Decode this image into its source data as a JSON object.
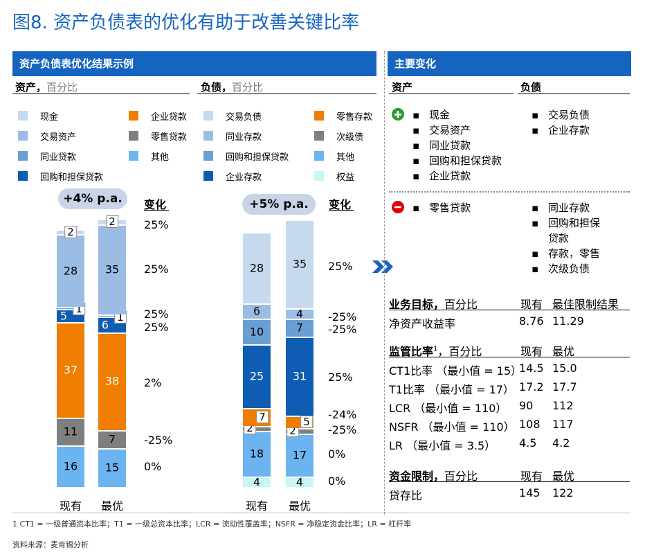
{
  "title": "图8. 资产负债表的优化有助于改善关键比率",
  "left_panel": {
    "banner": "资产负债表优化结果示例",
    "assets_head": "资产，",
    "assets_sub": "百分比",
    "liab_head": "负债，",
    "liab_sub": "百分比",
    "asset_legend": [
      {
        "label": "现金",
        "color": "#c6d9ee"
      },
      {
        "label": "企业贷款",
        "color": "#ef7d00"
      },
      {
        "label": "交易资产",
        "color": "#9bbde3"
      },
      {
        "label": "零售贷款",
        "color": "#7f7f7f"
      },
      {
        "label": "同业贷款",
        "color": "#6a9fd3"
      },
      {
        "label": "其他",
        "color": "#6bb4f0"
      },
      {
        "label": "回购和担保贷款",
        "color": "#0e5db3"
      }
    ],
    "liab_legend": [
      {
        "label": "交易负债",
        "color": "#c6d9ee"
      },
      {
        "label": "零售存款",
        "color": "#ef7d00"
      },
      {
        "label": "同业存款",
        "color": "#9bbde3"
      },
      {
        "label": "次级债",
        "color": "#7f7f7f"
      },
      {
        "label": "回购和担保贷款",
        "color": "#6a9fd3"
      },
      {
        "label": "其他",
        "color": "#6bb4f0"
      },
      {
        "label": "企业存款",
        "color": "#0e5db3"
      },
      {
        "label": "权益",
        "color": "#c8f7f5"
      }
    ],
    "assets_growth": "+4% p.a.",
    "liab_growth": "+5% p.a.",
    "change_head": "变化",
    "asset_changes": [
      "25%",
      "25%",
      "25%",
      "25%",
      "2%",
      "-25%",
      "0%"
    ],
    "liab_changes": [
      "25%",
      "-25%",
      "-25%",
      "25%",
      "-24%",
      "-25%",
      "0%",
      "0%"
    ]
  },
  "chart_data": [
    {
      "type": "bar",
      "stacked": true,
      "title": "资产，百分比",
      "categories": [
        "现有",
        "最优"
      ],
      "series": [
        {
          "name": "其他",
          "values": [
            16,
            15
          ],
          "color": "#6bb4f0"
        },
        {
          "name": "零售贷款",
          "values": [
            11,
            7
          ],
          "color": "#7f7f7f"
        },
        {
          "name": "企业贷款",
          "values": [
            37,
            38
          ],
          "color": "#ef7d00"
        },
        {
          "name": "回购和担保贷款",
          "values": [
            5,
            6
          ],
          "color": "#0e5db3"
        },
        {
          "name": "同业贷款",
          "values": [
            1,
            1
          ],
          "color": "#6a9fd3"
        },
        {
          "name": "交易资产",
          "values": [
            28,
            35
          ],
          "color": "#9bbde3"
        },
        {
          "name": "现金",
          "values": [
            2,
            2
          ],
          "color": "#c6d9ee"
        }
      ]
    },
    {
      "type": "bar",
      "stacked": true,
      "title": "负债，百分比",
      "categories": [
        "现有",
        "最优"
      ],
      "series": [
        {
          "name": "权益",
          "values": [
            4,
            4
          ],
          "color": "#c8f7f5"
        },
        {
          "name": "其他",
          "values": [
            18,
            17
          ],
          "color": "#6bb4f0"
        },
        {
          "name": "次级债",
          "values": [
            2,
            2
          ],
          "color": "#7f7f7f"
        },
        {
          "name": "零售存款",
          "values": [
            7,
            5
          ],
          "color": "#ef7d00"
        },
        {
          "name": "企业存款",
          "values": [
            25,
            31
          ],
          "color": "#0e5db3"
        },
        {
          "name": "回购和担保贷款",
          "values": [
            10,
            7
          ],
          "color": "#6a9fd3"
        },
        {
          "name": "同业存款",
          "values": [
            6,
            4
          ],
          "color": "#9bbde3"
        },
        {
          "name": "交易负债",
          "values": [
            28,
            35
          ],
          "color": "#c6d9ee"
        }
      ]
    }
  ],
  "right_panel": {
    "banner": "主要变化",
    "assets_head": "资产",
    "liab_head": "负债",
    "plus_assets": [
      "现金",
      "交易资产",
      "同业贷款",
      "回购和担保贷款",
      "企业贷款"
    ],
    "plus_liab": [
      "交易负债",
      "企业存款"
    ],
    "minus_assets": [
      "零售贷款"
    ],
    "minus_liab": [
      "同业存款",
      "回购和担保",
      "贷款",
      "存款，零售",
      "次级负债"
    ],
    "biz_head": "业务目标，",
    "biz_sub": "百分比",
    "biz_col1": "现有",
    "biz_col2": "最佳限制结果",
    "biz_rows": [
      {
        "label": "净资产收益率",
        "v1": "8.76",
        "v2": "11.29"
      }
    ],
    "reg_head": "监管比率",
    "reg_sup": "1",
    "reg_sub": "，百分比",
    "reg_col1": "现有",
    "reg_col2": "最优",
    "reg_rows": [
      {
        "label": "CT1比率 （最小值 = 15）",
        "v1": "14.5",
        "v2": "15.0"
      },
      {
        "label": "T1比率 （最小值 = 17）",
        "v1": "17.2",
        "v2": "17.7"
      },
      {
        "label": "LCR （最小值 = 110）",
        "v1": "90",
        "v2": "112"
      },
      {
        "label": "NSFR （最小值 = 110）",
        "v1": "108",
        "v2": "117"
      },
      {
        "label": "LR （最小值 = 3.5）",
        "v1": "4.5",
        "v2": "4.2"
      }
    ],
    "fund_head": "资金限制，",
    "fund_sub": "百分比",
    "fund_col1": "现有",
    "fund_col2": "最优",
    "fund_rows": [
      {
        "label": "贷存比",
        "v1": "145",
        "v2": "122"
      }
    ]
  },
  "footnote": "1 CT1 = 一级普通资本比率；T1 = 一级总资本比率；LCR = 流动性覆盖率；NSFR = 净稳定资金比率；LR = 杠杆率",
  "source": "资料来源：麦肯锡分析"
}
